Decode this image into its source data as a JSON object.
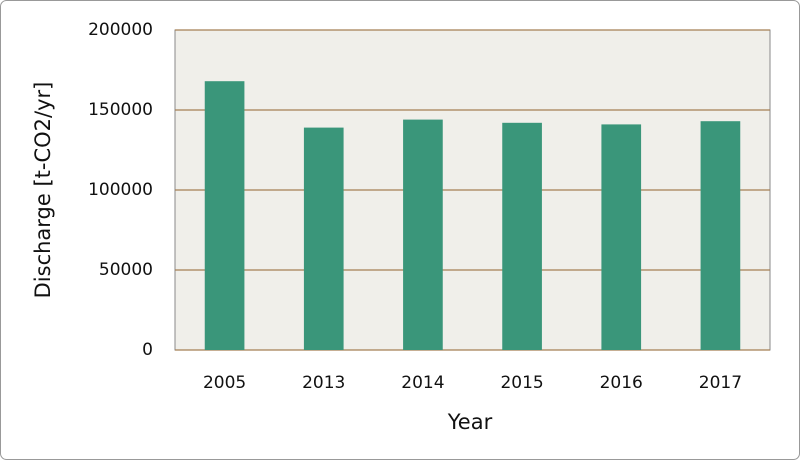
{
  "chart_data": {
    "type": "bar",
    "x_label": "Year",
    "y_label": "Discharge [t-CO2/yr]",
    "categories": [
      "2005",
      "2013",
      "2014",
      "2015",
      "2016",
      "2017"
    ],
    "values": [
      168000,
      139000,
      144000,
      142000,
      141000,
      143000
    ],
    "color": "#3a967a",
    "ylim": [
      0,
      200000
    ],
    "yticks": [
      0,
      50000,
      100000,
      150000,
      200000
    ],
    "grid": true
  }
}
